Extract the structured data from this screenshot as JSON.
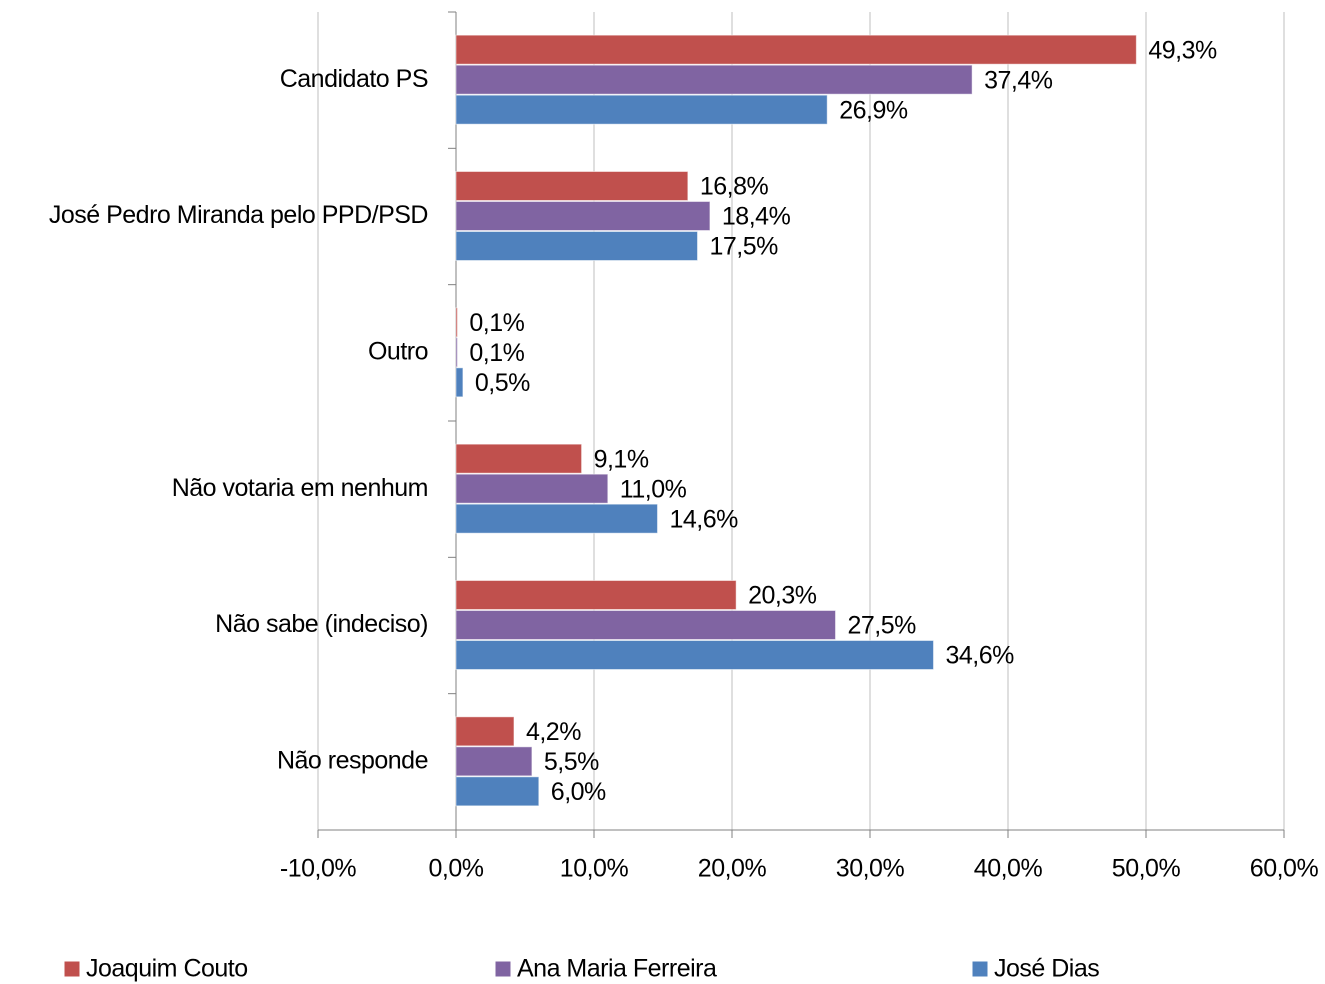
{
  "chart_data": {
    "type": "barh",
    "categories": [
      "Candidato PS",
      "José Pedro Miranda pelo PPD/PSD",
      "Outro",
      "Não votaria em nenhum",
      "Não sabe (indeciso)",
      "Não responde"
    ],
    "series": [
      {
        "name": "Joaquim Couto",
        "color": "#c0504d",
        "label_color": "#632523",
        "values": [
          49.3,
          16.8,
          0.1,
          9.1,
          20.3,
          4.2
        ],
        "value_labels": [
          "49,3%",
          "16,8%",
          "0,1%",
          "9,1%",
          "20,3%",
          "4,2%"
        ]
      },
      {
        "name": "Ana Maria Ferreira",
        "color": "#8064a2",
        "label_color": "#3f3151",
        "values": [
          37.4,
          18.4,
          0.1,
          11.0,
          27.5,
          5.5
        ],
        "value_labels": [
          "37,4%",
          "18,4%",
          "0,1%",
          "11,0%",
          "27,5%",
          "5,5%"
        ]
      },
      {
        "name": "José Dias",
        "color": "#4f81bd",
        "label_color": "#17375e",
        "values": [
          26.9,
          17.5,
          0.5,
          14.6,
          34.6,
          6.0
        ],
        "value_labels": [
          "26,9%",
          "17,5%",
          "0,5%",
          "14,6%",
          "34,6%",
          "6,0%"
        ]
      }
    ],
    "xlim": [
      -10,
      60
    ],
    "xticks": [
      {
        "value": -10,
        "label": "-10,0%"
      },
      {
        "value": 0,
        "label": "0,0%"
      },
      {
        "value": 10,
        "label": "10,0%"
      },
      {
        "value": 20,
        "label": "20,0%"
      },
      {
        "value": 30,
        "label": "30,0%"
      },
      {
        "value": 40,
        "label": "40,0%"
      },
      {
        "value": 50,
        "label": "50,0%"
      },
      {
        "value": 60,
        "label": "60,0%"
      }
    ],
    "grid": true,
    "legend": "bottom"
  }
}
